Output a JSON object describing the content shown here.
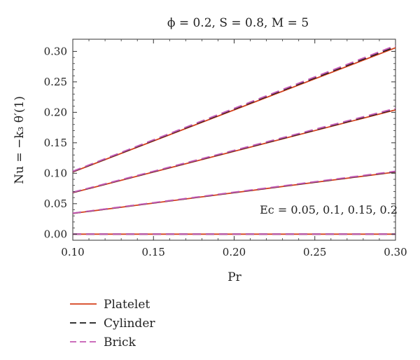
{
  "chart_data": {
    "type": "line",
    "title": "ϕ = 0.2, S = 0.8, M = 5",
    "xlabel": "Pr",
    "ylabel": "Nu = −k₃ θ′(1)",
    "xlim": [
      0.1,
      0.3
    ],
    "ylim": [
      -0.01,
      0.32
    ],
    "xticks": [
      "0.10",
      "0.15",
      "0.20",
      "0.25",
      "0.30"
    ],
    "yticks": [
      "0.00",
      "0.05",
      "0.10",
      "0.15",
      "0.20",
      "0.25",
      "0.30"
    ],
    "annotation": "Ec = 0.05, 0.1, 0.15, 0.2",
    "legend_position": "below-left",
    "x": [
      0.1,
      0.3
    ],
    "series": [
      {
        "name": "Platelet",
        "color": "#d4401c",
        "style": "solid",
        "lines": [
          {
            "ec": "0.05",
            "values": [
              0.0,
              0.0
            ]
          },
          {
            "ec": "0.1",
            "values": [
              0.034,
              0.102
            ]
          },
          {
            "ec": "0.15",
            "values": [
              0.068,
              0.204
            ]
          },
          {
            "ec": "0.2",
            "values": [
              0.102,
              0.306
            ]
          }
        ]
      },
      {
        "name": "Cylinder",
        "color": "#1a1a1a",
        "style": "dashed",
        "lines": [
          {
            "ec": "0.05",
            "values": [
              0.0,
              0.0
            ]
          },
          {
            "ec": "0.1",
            "values": [
              0.0342,
              0.1026
            ]
          },
          {
            "ec": "0.15",
            "values": [
              0.0684,
              0.2052
            ]
          },
          {
            "ec": "0.2",
            "values": [
              0.1026,
              0.3078
            ]
          }
        ]
      },
      {
        "name": "Brick",
        "color": "#c45ab3",
        "style": "dashed",
        "lines": [
          {
            "ec": "0.05",
            "values": [
              0.0,
              0.0
            ]
          },
          {
            "ec": "0.1",
            "values": [
              0.0344,
              0.1032
            ]
          },
          {
            "ec": "0.15",
            "values": [
              0.0688,
              0.2064
            ]
          },
          {
            "ec": "0.2",
            "values": [
              0.1032,
              0.3096
            ]
          }
        ]
      }
    ]
  }
}
